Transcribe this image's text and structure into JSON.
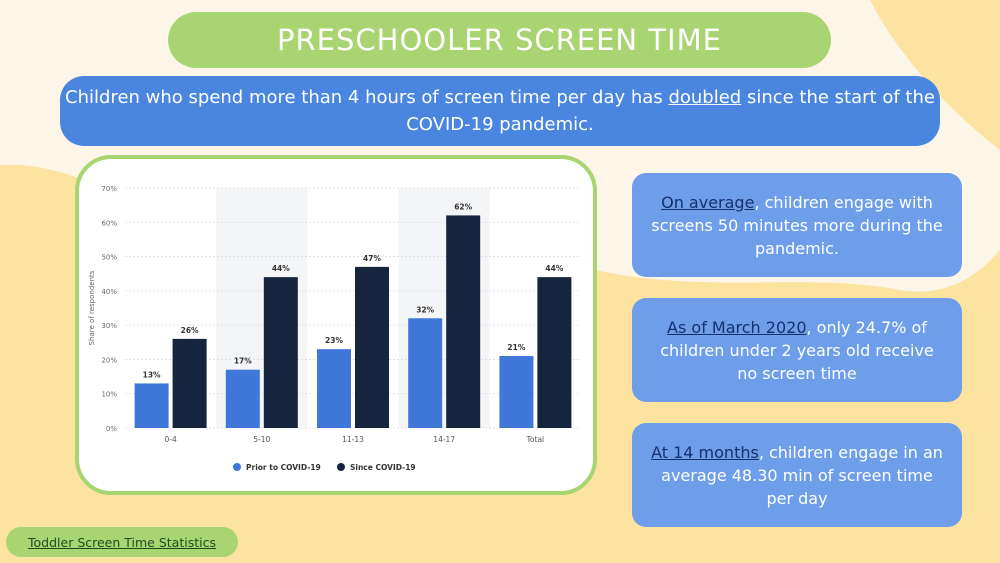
{
  "title": "PRESCHOOLER SCREEN TIME",
  "banner": {
    "before": "Children who spend more than 4 hours of screen time per day has ",
    "emphasis": "doubled",
    "after": " since the start of the COVID-19 pandemic."
  },
  "facts": [
    {
      "lead": "On average",
      "rest": ", children engage with screens 50 minutes more during the pandemic."
    },
    {
      "lead": "As of March 2020",
      "rest": ", only 24.7% of children under 2 years old receive no screen time"
    },
    {
      "lead": "At 14 months",
      "rest": ", children engage in an average 48.30 min of screen time per day"
    }
  ],
  "source_link": "Toddler Screen Time Statistics",
  "colors": {
    "green": "#a8d571",
    "banner_blue": "#4a86e0",
    "fact_blue": "#6e9eea",
    "prior_series": "#3f78d9",
    "since_series": "#16243d"
  },
  "chart_data": {
    "type": "bar",
    "categories": [
      "0-4",
      "5-10",
      "11-13",
      "14-17",
      "Total"
    ],
    "series": [
      {
        "name": "Prior to COVID-19",
        "values": [
          13,
          17,
          23,
          32,
          21
        ],
        "color": "#3f78d9"
      },
      {
        "name": "Since COVID-19",
        "values": [
          26,
          44,
          47,
          62,
          44
        ],
        "color": "#16243d"
      }
    ],
    "ylabel": "Share of respondents",
    "ylim": [
      0,
      70
    ],
    "yticks": [
      0,
      10,
      20,
      30,
      40,
      50,
      60,
      70
    ],
    "value_suffix": "%",
    "grid": true,
    "legend": "bottom-center"
  }
}
